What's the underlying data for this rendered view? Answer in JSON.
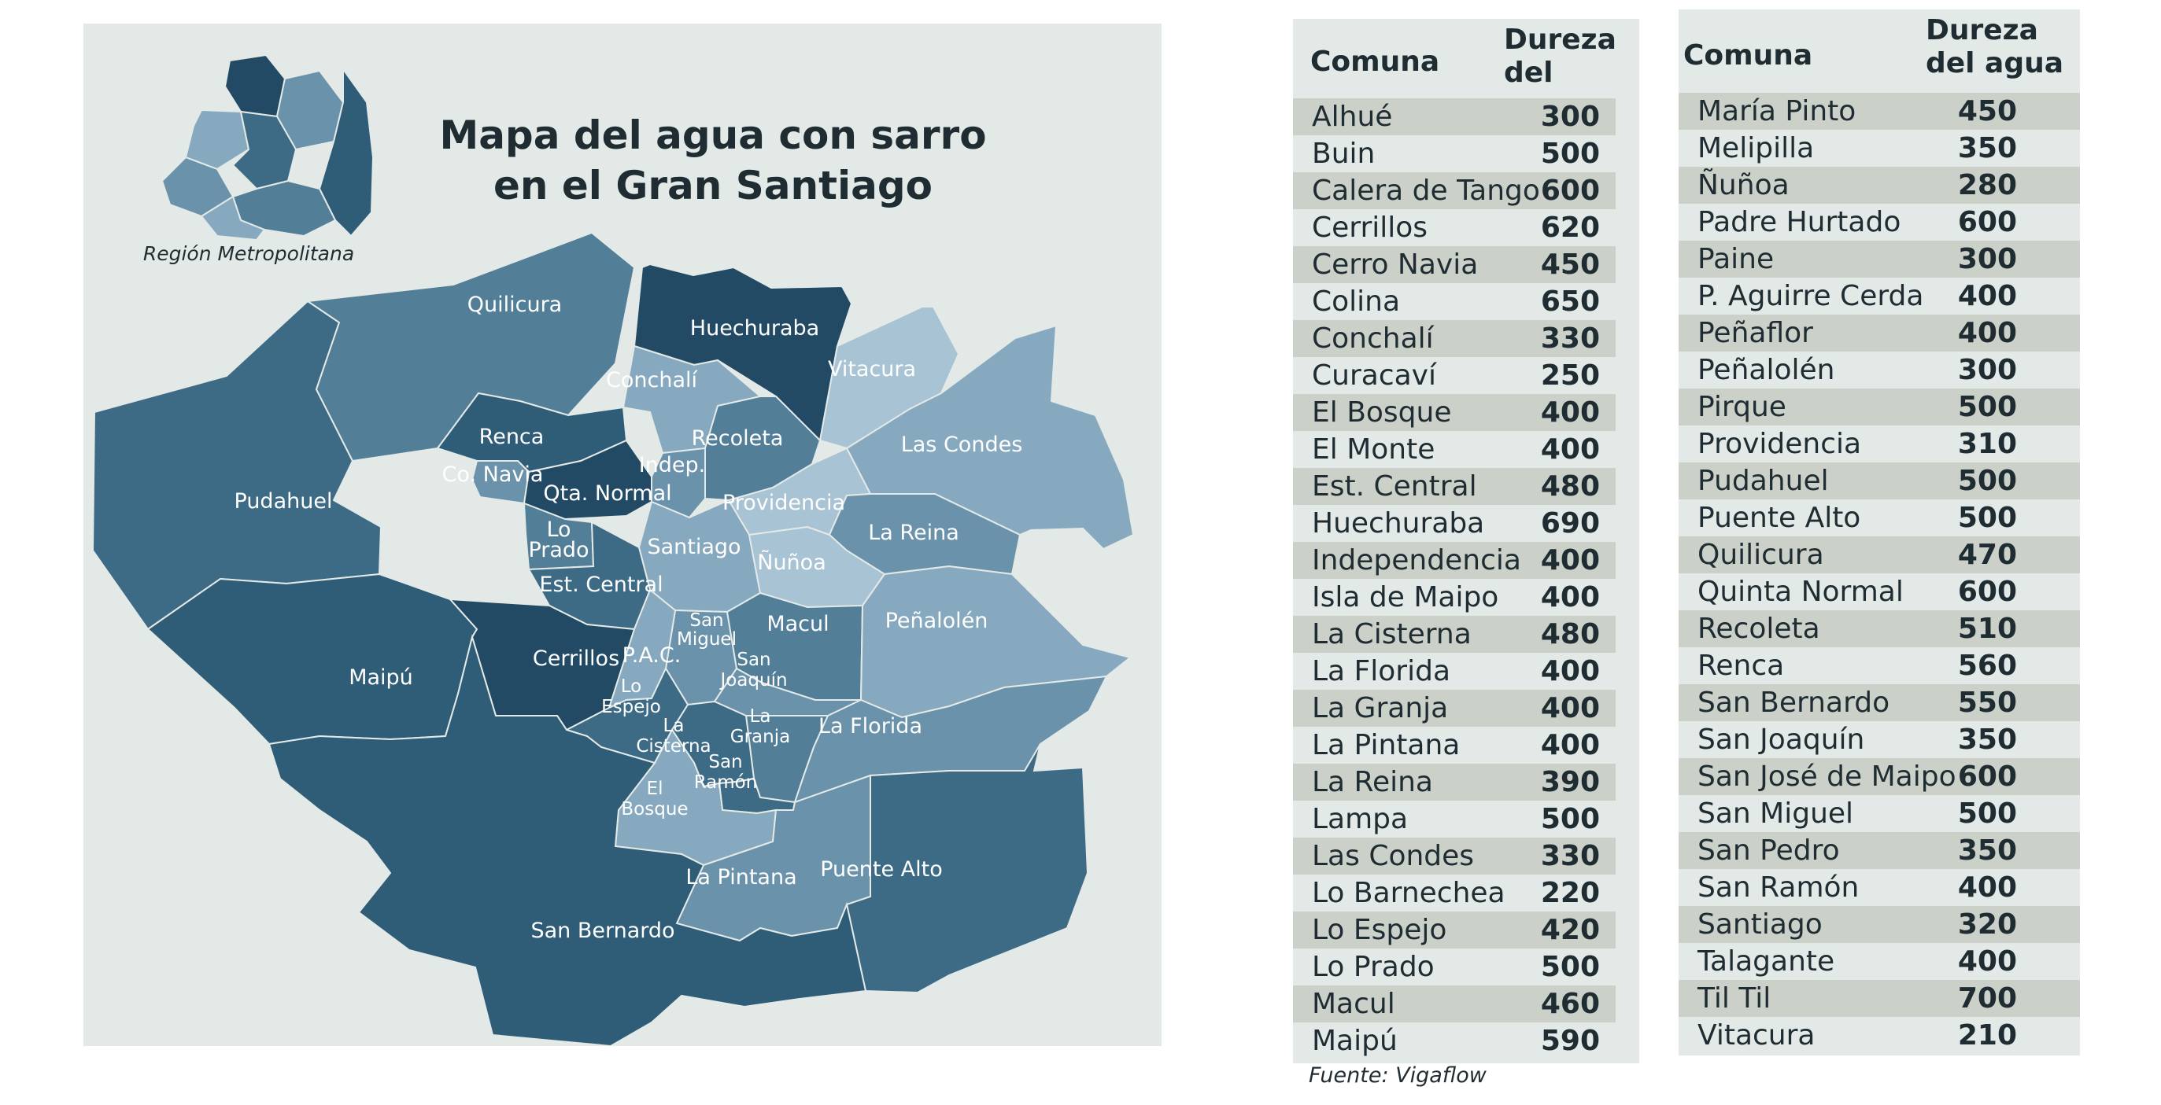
{
  "map": {
    "title_line1": "Mapa del agua con sarro",
    "title_line2": "en el Gran Santiago",
    "region_caption": "Región Metropolitana",
    "comunas": [
      {
        "name": "Quilicura"
      },
      {
        "name": "Huechuraba"
      },
      {
        "name": "Vitacura"
      },
      {
        "name": "Conchalí"
      },
      {
        "name": "Las Condes"
      },
      {
        "name": "Renca"
      },
      {
        "name": "Recoleta"
      },
      {
        "name": "Indep."
      },
      {
        "name": "Co. Navia"
      },
      {
        "name": "Qta. Normal"
      },
      {
        "name": "Pudahuel"
      },
      {
        "name": "Providencia"
      },
      {
        "name": "Lo"
      },
      {
        "name": "Prado"
      },
      {
        "name": "Santiago"
      },
      {
        "name": "La Reina"
      },
      {
        "name": "Ñuñoa"
      },
      {
        "name": "Est. Central"
      },
      {
        "name": "San"
      },
      {
        "name": "Miguel"
      },
      {
        "name": "Macul"
      },
      {
        "name": "Peñalolén"
      },
      {
        "name": "Maipú"
      },
      {
        "name": "Cerrillos"
      },
      {
        "name": "P.A.C."
      },
      {
        "name": "San"
      },
      {
        "name": "Joaquín"
      },
      {
        "name": "Lo"
      },
      {
        "name": "Espejo"
      },
      {
        "name": "La"
      },
      {
        "name": "Granja"
      },
      {
        "name": "La Florida"
      },
      {
        "name": "La"
      },
      {
        "name": "Cisterna"
      },
      {
        "name": "San"
      },
      {
        "name": "Ramón"
      },
      {
        "name": "El"
      },
      {
        "name": "Bosque"
      },
      {
        "name": "La Pintana"
      },
      {
        "name": "Puente Alto"
      },
      {
        "name": "San Bernardo"
      }
    ]
  },
  "table_left": {
    "col_comuna": "Comuna",
    "col_dureza_line1": "Dureza",
    "col_dureza_line2": "del agua",
    "rows": [
      {
        "comuna": "Alhué",
        "dureza": "300"
      },
      {
        "comuna": "Buin",
        "dureza": "500"
      },
      {
        "comuna": "Calera de Tango",
        "dureza": "600"
      },
      {
        "comuna": "Cerrillos",
        "dureza": "620"
      },
      {
        "comuna": "Cerro Navia",
        "dureza": "450"
      },
      {
        "comuna": "Colina",
        "dureza": "650"
      },
      {
        "comuna": "Conchalí",
        "dureza": "330"
      },
      {
        "comuna": "Curacaví",
        "dureza": "250"
      },
      {
        "comuna": "El Bosque",
        "dureza": "400"
      },
      {
        "comuna": "El Monte",
        "dureza": "400"
      },
      {
        "comuna": "Est. Central",
        "dureza": "480"
      },
      {
        "comuna": "Huechuraba",
        "dureza": "690"
      },
      {
        "comuna": "Independencia",
        "dureza": "400"
      },
      {
        "comuna": "Isla de Maipo",
        "dureza": "400"
      },
      {
        "comuna": "La Cisterna",
        "dureza": "480"
      },
      {
        "comuna": "La Florida",
        "dureza": "400"
      },
      {
        "comuna": "La Granja",
        "dureza": "400"
      },
      {
        "comuna": "La Pintana",
        "dureza": "400"
      },
      {
        "comuna": "La Reina",
        "dureza": "390"
      },
      {
        "comuna": "Lampa",
        "dureza": "500"
      },
      {
        "comuna": "Las Condes",
        "dureza": "330"
      },
      {
        "comuna": "Lo Barnechea",
        "dureza": "220"
      },
      {
        "comuna": "Lo Espejo",
        "dureza": "420"
      },
      {
        "comuna": "Lo Prado",
        "dureza": "500"
      },
      {
        "comuna": "Macul",
        "dureza": "460"
      },
      {
        "comuna": "Maipú",
        "dureza": "590"
      }
    ]
  },
  "table_right": {
    "col_comuna": "Comuna",
    "col_dureza_line1": "Dureza",
    "col_dureza_line2": "del agua",
    "rows": [
      {
        "comuna": "María Pinto",
        "dureza": "450"
      },
      {
        "comuna": "Melipilla",
        "dureza": "350"
      },
      {
        "comuna": "Ñuñoa",
        "dureza": "280"
      },
      {
        "comuna": "Padre Hurtado",
        "dureza": "600"
      },
      {
        "comuna": "Paine",
        "dureza": "300"
      },
      {
        "comuna": "P. Aguirre Cerda",
        "dureza": "400"
      },
      {
        "comuna": "Peñaflor",
        "dureza": "400"
      },
      {
        "comuna": "Peñalolén",
        "dureza": "300"
      },
      {
        "comuna": "Pirque",
        "dureza": "500"
      },
      {
        "comuna": "Providencia",
        "dureza": "310"
      },
      {
        "comuna": "Pudahuel",
        "dureza": "500"
      },
      {
        "comuna": "Puente Alto",
        "dureza": "500"
      },
      {
        "comuna": "Quilicura",
        "dureza": "470"
      },
      {
        "comuna": "Quinta Normal",
        "dureza": "600"
      },
      {
        "comuna": "Recoleta",
        "dureza": "510"
      },
      {
        "comuna": "Renca",
        "dureza": "560"
      },
      {
        "comuna": "San Bernardo",
        "dureza": "550"
      },
      {
        "comuna": "San Joaquín",
        "dureza": "350"
      },
      {
        "comuna": "San José de Maipo",
        "dureza": "600"
      },
      {
        "comuna": "San Miguel",
        "dureza": "500"
      },
      {
        "comuna": "San Pedro",
        "dureza": "350"
      },
      {
        "comuna": "San Ramón",
        "dureza": "400"
      },
      {
        "comuna": "Santiago",
        "dureza": "320"
      },
      {
        "comuna": "Talagante",
        "dureza": "400"
      },
      {
        "comuna": "Til Til",
        "dureza": "700"
      },
      {
        "comuna": "Vitacura",
        "dureza": "210"
      }
    ]
  },
  "source": "Fuente: Vigaflow",
  "colors": {
    "panel": "#e3e9e7",
    "row_shade": "#cbd0c9",
    "text": "#1f2d33",
    "darkest": "#234a64",
    "dark": "#2f5c76",
    "mid_dark": "#3d6a84",
    "mid": "#527e98",
    "mid_light": "#6a92ab",
    "light": "#86a9bf",
    "lightest": "#a8c3d3"
  }
}
